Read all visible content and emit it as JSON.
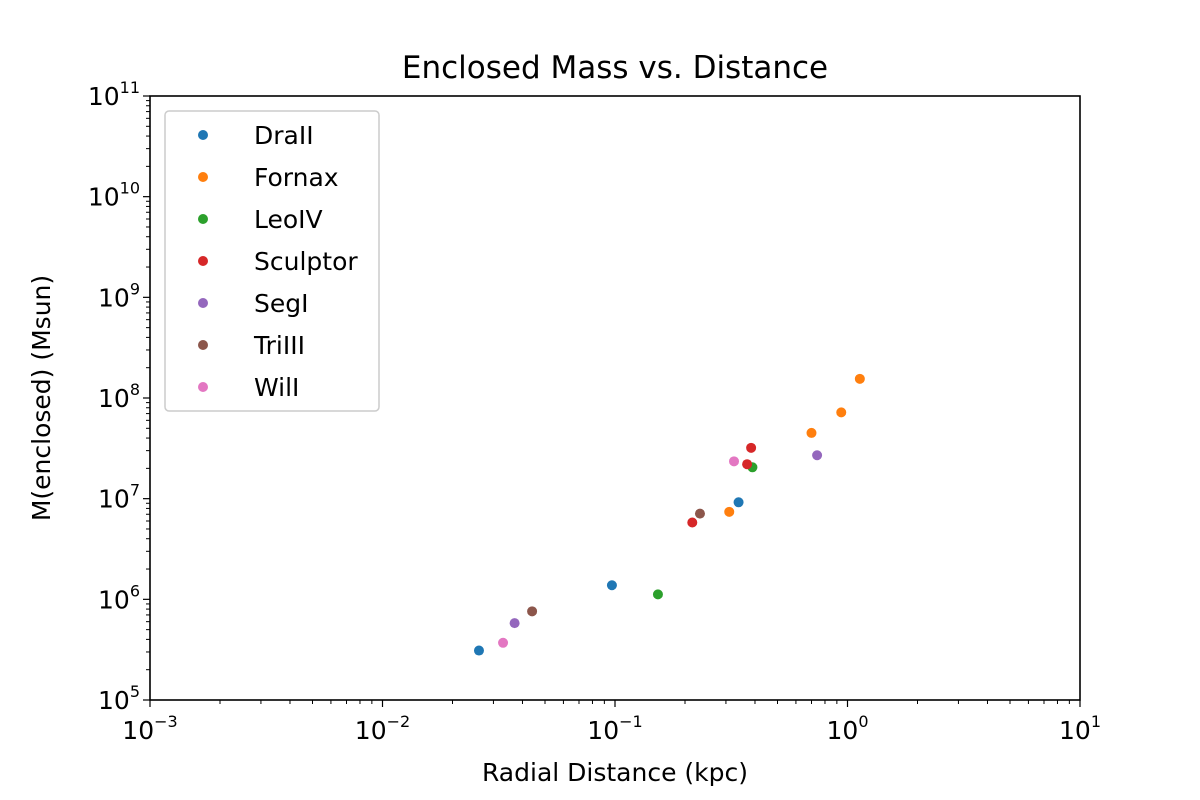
{
  "chart_data": {
    "type": "scatter",
    "title": "Enclosed Mass vs. Distance",
    "xlabel": "Radial Distance (kpc)",
    "ylabel": "M(enclosed) (Msun)",
    "xscale": "log",
    "yscale": "log",
    "xlim": [
      0.001,
      10
    ],
    "ylim": [
      100000,
      100000000000
    ],
    "grid": false,
    "legend_position": "top-left",
    "x_ticks": [
      {
        "value": 0.001,
        "base": "10",
        "exp": "−3"
      },
      {
        "value": 0.01,
        "base": "10",
        "exp": "−2"
      },
      {
        "value": 0.1,
        "base": "10",
        "exp": "−1"
      },
      {
        "value": 1,
        "base": "10",
        "exp": "0"
      },
      {
        "value": 10,
        "base": "10",
        "exp": "1"
      }
    ],
    "y_ticks": [
      {
        "value": 100000,
        "base": "10",
        "exp": "5"
      },
      {
        "value": 1000000,
        "base": "10",
        "exp": "6"
      },
      {
        "value": 10000000,
        "base": "10",
        "exp": "7"
      },
      {
        "value": 100000000,
        "base": "10",
        "exp": "8"
      },
      {
        "value": 1000000000,
        "base": "10",
        "exp": "9"
      },
      {
        "value": 10000000000,
        "base": "10",
        "exp": "10"
      },
      {
        "value": 100000000000,
        "base": "10",
        "exp": "11"
      }
    ],
    "series": [
      {
        "name": "DraII",
        "color": "#1f77b4",
        "points": [
          [
            0.026,
            310000
          ],
          [
            0.097,
            1380000
          ],
          [
            0.34,
            9200000
          ]
        ]
      },
      {
        "name": "Fornax",
        "color": "#ff7f0e",
        "points": [
          [
            0.31,
            7400000
          ],
          [
            0.7,
            45000000
          ],
          [
            0.94,
            72000000
          ],
          [
            1.13,
            155000000
          ]
        ]
      },
      {
        "name": "LeoIV",
        "color": "#2ca02c",
        "points": [
          [
            0.153,
            1120000
          ],
          [
            0.39,
            20500000
          ]
        ]
      },
      {
        "name": "Sculptor",
        "color": "#d62728",
        "points": [
          [
            0.215,
            5800000
          ],
          [
            0.37,
            22000000
          ],
          [
            0.385,
            32000000
          ]
        ]
      },
      {
        "name": "SegI",
        "color": "#9467bd",
        "points": [
          [
            0.037,
            580000
          ],
          [
            0.74,
            27000000
          ]
        ]
      },
      {
        "name": "TriIII",
        "color": "#8c564b",
        "points": [
          [
            0.044,
            760000
          ],
          [
            0.232,
            7100000
          ]
        ]
      },
      {
        "name": "WilI",
        "color": "#e377c2",
        "points": [
          [
            0.033,
            370000
          ],
          [
            0.325,
            23500000
          ]
        ]
      }
    ]
  }
}
